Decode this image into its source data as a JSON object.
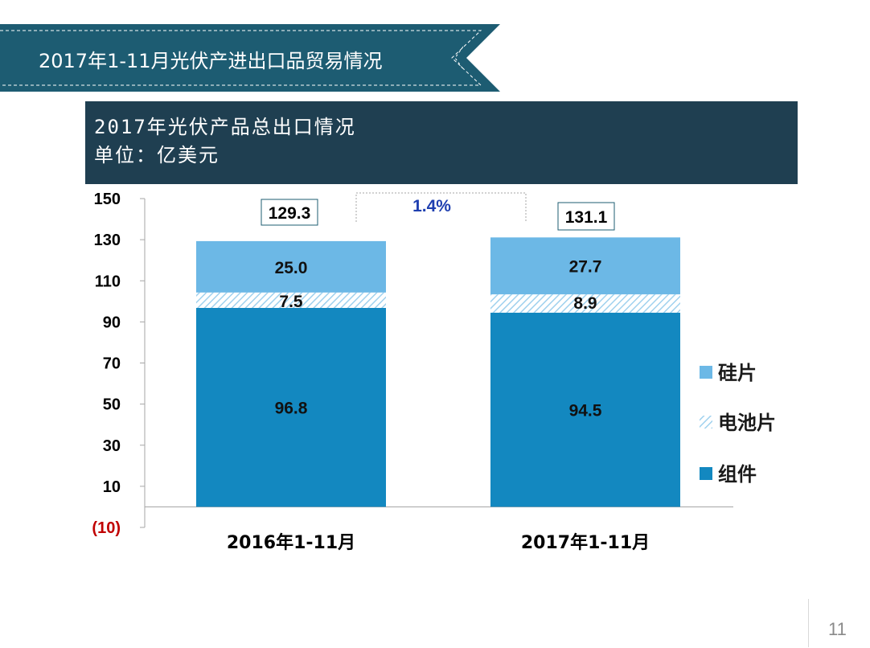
{
  "banner": {
    "title": "2017年1-11月光伏产进出口品贸易情况"
  },
  "header": {
    "line1": "2017年光伏产品总出口情况",
    "line2": "单位：亿美元"
  },
  "page_number": "11",
  "colors": {
    "banner": "#1d5c72",
    "header": "#1f3f51",
    "wafer": "#6cb8e6",
    "cell_hatch": "#9fd1ee",
    "module": "#1388c0",
    "growth": "#1f3fb0",
    "negative_tick": "#c00000"
  },
  "chart_data": {
    "type": "bar",
    "stacked": true,
    "categories": [
      "2016年1-11月",
      "2017年1-11月"
    ],
    "series": [
      {
        "name": "组件",
        "values": [
          96.8,
          94.5
        ],
        "labels": [
          "96.8",
          "94.5"
        ],
        "color": "#1388c0"
      },
      {
        "name": "电池片",
        "values": [
          7.5,
          8.9
        ],
        "labels": [
          "7.5",
          "8.9"
        ],
        "color": "#9fd1ee",
        "pattern": "hatch"
      },
      {
        "name": "硅片",
        "values": [
          25.0,
          27.7
        ],
        "labels": [
          "25.0",
          "27.7"
        ],
        "color": "#6cb8e6"
      }
    ],
    "totals": [
      "129.3",
      "131.1"
    ],
    "growth_label": "1.4%",
    "ylim": [
      -10,
      150
    ],
    "yticks": [
      {
        "value": 150,
        "label": "150"
      },
      {
        "value": 130,
        "label": "130"
      },
      {
        "value": 110,
        "label": "110"
      },
      {
        "value": 90,
        "label": "90"
      },
      {
        "value": 70,
        "label": "70"
      },
      {
        "value": 50,
        "label": "50"
      },
      {
        "value": 30,
        "label": "30"
      },
      {
        "value": 10,
        "label": "10"
      },
      {
        "value": -10,
        "label": "(10)"
      }
    ],
    "legend": {
      "position": "right",
      "order": [
        "硅片",
        "电池片",
        "组件"
      ]
    },
    "grid": false
  }
}
